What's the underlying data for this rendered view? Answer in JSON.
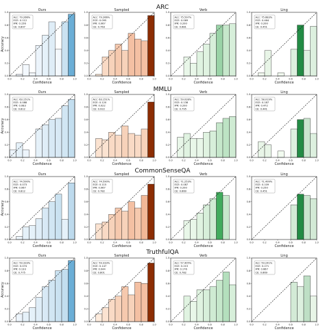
{
  "figure": {
    "datasets": [
      "ARC",
      "MMLU",
      "CommonSenseQA",
      "TruthfulQA"
    ],
    "methods": [
      "Ours",
      "Sampled",
      "Verb",
      "Ling"
    ],
    "xlabel": "Confidence",
    "ylabel": "Accuracy",
    "method_palettes": {
      "Ours": {
        "light": "#f3f8fd",
        "dark": "#6baed6",
        "peak": "#6baed6"
      },
      "Sampled": {
        "light": "#fff4e8",
        "dark": "#d94801",
        "peak": "#8c2d04"
      },
      "Verb": {
        "light": "#f2fbf0",
        "dark": "#41ab5d",
        "peak": "#41ab5d"
      },
      "Ling": {
        "light": "#f2fbf0",
        "dark": "#238b45",
        "peak": "#238b45"
      }
    }
  },
  "chart_data": [
    {
      "type": "bar",
      "dataset": "ARC",
      "method": "Ours",
      "ticks": [
        "0.0",
        "0.2",
        "0.4",
        "0.6",
        "0.8",
        "1.0"
      ],
      "stats": [
        "Acc: 79.266%",
        "ECE: 0.112",
        "IPR: 0.156",
        "CE: 0.897"
      ],
      "values": [
        0.0,
        0.03,
        0.18,
        0.05,
        0.48,
        0.64,
        0.85,
        0.42,
        0.85,
        0.97
      ],
      "shade": [
        0,
        0,
        0,
        0,
        0.05,
        0.1,
        0.15,
        0,
        0.3,
        1
      ]
    },
    {
      "type": "bar",
      "dataset": "ARC",
      "method": "Sampled",
      "ticks": [
        "0.0",
        "0.2",
        "0.4",
        "0.6",
        "0.8",
        "1.0"
      ],
      "stats": [
        "Acc: 79.266%",
        "ECE: 0.095",
        "IPR: 0.067",
        "CE: 0.763"
      ],
      "values": [
        0.0,
        0.03,
        0.3,
        0.4,
        0.5,
        0.4,
        0.67,
        0.58,
        0.55,
        0.95
      ],
      "shade": [
        0.05,
        0.05,
        0.15,
        0.2,
        0.25,
        0.2,
        0.3,
        0.3,
        0.3,
        1
      ]
    },
    {
      "type": "bar",
      "dataset": "ARC",
      "method": "Verb",
      "ticks": [
        "0.0",
        "0.2",
        "0.4",
        "0.6",
        "0.8",
        "1.0"
      ],
      "stats": [
        "Acc: 75.597%",
        "ECE: 0.069",
        "IPR: 0.200",
        "CE: 0.681"
      ],
      "values": [
        0.0,
        0.0,
        0.3,
        0.2,
        0.38,
        0.5,
        0.67,
        0.8,
        0.8,
        0.82
      ],
      "shade": [
        0,
        0,
        0.05,
        0.05,
        0.1,
        0.1,
        0.15,
        0.5,
        0.25,
        0.15
      ]
    },
    {
      "type": "bar",
      "dataset": "ARC",
      "method": "Ling",
      "ticks": [
        "0.0",
        "0.2",
        "0.4",
        "0.6",
        "0.8",
        "1.0"
      ],
      "stats": [
        "Acc: 75.683%",
        "ECE: 0.464",
        "IPR: 0.200",
        "CE: 0.451"
      ],
      "values": [
        0.0,
        0.05,
        0.4,
        0.0,
        0.05,
        0.0,
        0.42,
        0.8,
        0.4,
        0.78
      ],
      "shade": [
        0,
        0,
        0.05,
        0,
        0,
        0,
        0.1,
        1,
        0.1,
        0.1
      ]
    },
    {
      "type": "bar",
      "dataset": "MMLU",
      "method": "Ours",
      "ticks": [
        "0.0",
        "0.2",
        "0.4",
        "0.6",
        "0.8",
        "1.0"
      ],
      "stats": [
        "Acc: 63.151%",
        "ECE: 0.088",
        "IPR: 0.083",
        "CE: 0.812"
      ],
      "values": [
        0.12,
        0.23,
        0.12,
        0.0,
        0.45,
        0.52,
        0.6,
        0.62,
        0.82,
        0.92
      ],
      "shade": [
        0.05,
        0.1,
        0.05,
        0,
        0.1,
        0.15,
        0.2,
        0.2,
        0.25,
        0.35
      ]
    },
    {
      "type": "bar",
      "dataset": "MMLU",
      "method": "Sampled",
      "ticks": [
        "0.0",
        "0.2",
        "0.4",
        "0.6",
        "0.8",
        "1.0"
      ],
      "stats": [
        "Acc: 63.151%",
        "ECE: 0.120",
        "IPR: 0.022",
        "CE: 0.922"
      ],
      "values": [
        0.0,
        0.3,
        0.28,
        0.4,
        0.35,
        0.5,
        0.38,
        0.35,
        0.45,
        0.88
      ],
      "shade": [
        0,
        0.1,
        0.1,
        0.15,
        0.15,
        0.2,
        0.15,
        0.15,
        0.2,
        1
      ]
    },
    {
      "type": "bar",
      "dataset": "MMLU",
      "method": "Verb",
      "ticks": [
        "0.0",
        "0.2",
        "0.4",
        "0.6",
        "0.8",
        "1.0"
      ],
      "stats": [
        "Acc: 59.028%",
        "ECE: 0.138",
        "IPR: 0.200",
        "CE: 0.795"
      ],
      "values": [
        0.0,
        0.32,
        0.38,
        0.3,
        0.3,
        0.4,
        0.42,
        0.55,
        0.62,
        0.65
      ],
      "shade": [
        0,
        0.05,
        0.1,
        0.05,
        0.05,
        0.1,
        0.15,
        0.25,
        0.3,
        0.2
      ]
    },
    {
      "type": "bar",
      "dataset": "MMLU",
      "method": "Ling",
      "ticks": [
        "0.0",
        "0.2",
        "0.4",
        "0.6",
        "0.8",
        "1.0"
      ],
      "stats": [
        "Acc: 58.019%",
        "ECE: 0.187",
        "IPR: 0.472",
        "CE: 0.441"
      ],
      "values": [
        0.0,
        0.25,
        0.2,
        0.0,
        0.1,
        0.0,
        0.45,
        0.6,
        0.62,
        0.38
      ],
      "shade": [
        0,
        0.05,
        0.05,
        0,
        0,
        0,
        0.1,
        1,
        0.2,
        0.1
      ]
    },
    {
      "type": "bar",
      "dataset": "CommonSenseQA",
      "method": "Ours",
      "ticks": [
        "0.0",
        "0.2",
        "0.4",
        "0.6",
        "0.8",
        "1.0"
      ],
      "stats": [
        "Acc: 74.590%",
        "ECE: 0.073",
        "IPR: 0.067",
        "CE: 0.812"
      ],
      "values": [
        0.0,
        0.05,
        0.2,
        0.22,
        0.33,
        0.5,
        0.6,
        0.72,
        0.32,
        0.9
      ],
      "shade": [
        0,
        0.05,
        0.1,
        0.1,
        0.15,
        0.2,
        0.25,
        0.3,
        0.1,
        0.4
      ]
    },
    {
      "type": "bar",
      "dataset": "CommonSenseQA",
      "method": "Sampled",
      "ticks": [
        "0.0",
        "0.2",
        "0.4",
        "0.6",
        "0.8",
        "1.0"
      ],
      "stats": [
        "Acc: 74.590%",
        "ECE: 0.115",
        "IPR: 0.067",
        "CE: 0.782"
      ],
      "values": [
        0.0,
        0.25,
        0.28,
        0.4,
        0.5,
        0.45,
        0.6,
        0.5,
        0.7,
        0.88
      ],
      "shade": [
        0,
        0.1,
        0.15,
        0.2,
        0.25,
        0.2,
        0.3,
        0.25,
        0.35,
        1
      ]
    },
    {
      "type": "bar",
      "dataset": "CommonSenseQA",
      "method": "Verb",
      "ticks": [
        "0.0",
        "0.2",
        "0.4",
        "0.6",
        "0.8",
        "1.0"
      ],
      "stats": [
        "Acc: 71.253%",
        "ECE: 0.087",
        "IPR: 0.200",
        "CE: 0.660"
      ],
      "values": [
        0.0,
        0.0,
        0.3,
        0.32,
        0.42,
        0.55,
        0.65,
        0.75,
        0.7,
        0.0
      ],
      "shade": [
        0,
        0,
        0.05,
        0.05,
        0.1,
        0.15,
        0.2,
        1,
        0.25,
        0
      ]
    },
    {
      "type": "bar",
      "dataset": "CommonSenseQA",
      "method": "Ling",
      "ticks": [
        "0.0",
        "0.2",
        "0.4",
        "0.6",
        "0.8",
        "1.0"
      ],
      "stats": [
        "Acc: 71.499%",
        "ECE: 0.109",
        "IPR: 0.250",
        "CE: 0.451"
      ],
      "values": [
        0.0,
        0.0,
        0.0,
        0.0,
        0.0,
        0.0,
        0.55,
        0.72,
        0.7,
        0.65
      ],
      "shade": [
        0,
        0,
        0,
        0,
        0,
        0,
        0.15,
        1,
        0.2,
        0.15
      ]
    },
    {
      "type": "bar",
      "dataset": "TruthfulQA",
      "method": "Ours",
      "ticks": [
        "0.0",
        "0.2",
        "0.4",
        "0.6",
        "0.8",
        "1.0"
      ],
      "stats": [
        "Acc: 59.333%",
        "ECE: 0.074",
        "IPR: 0.133",
        "CE: 0.775"
      ],
      "values": [
        0.0,
        0.12,
        0.15,
        0.22,
        0.38,
        0.55,
        0.65,
        0.8,
        0.82,
        0.96
      ],
      "shade": [
        0,
        0.05,
        0.1,
        0.1,
        0.15,
        0.2,
        0.25,
        0.3,
        0.35,
        1
      ]
    },
    {
      "type": "bar",
      "dataset": "TruthfulQA",
      "method": "Sampled",
      "ticks": [
        "0.0",
        "0.2",
        "0.4",
        "0.6",
        "0.8",
        "1.0"
      ],
      "stats": [
        "Acc: 59.333%",
        "ECE: 0.147",
        "IPR: 0.044",
        "CE: 0.801"
      ],
      "values": [
        0.0,
        0.12,
        0.22,
        0.35,
        0.4,
        0.55,
        0.42,
        0.62,
        0.6,
        0.92
      ],
      "shade": [
        0,
        0.05,
        0.1,
        0.15,
        0.2,
        0.25,
        0.2,
        0.3,
        0.3,
        1
      ]
    },
    {
      "type": "bar",
      "dataset": "TruthfulQA",
      "method": "Verb",
      "ticks": [
        "0.0",
        "0.2",
        "0.4",
        "0.6",
        "0.8",
        "1.0"
      ],
      "stats": [
        "Acc: 57.405%",
        "ECE: 0.215",
        "IPR: 0.176",
        "CE: 0.782"
      ],
      "values": [
        0.0,
        0.0,
        0.4,
        0.32,
        0.5,
        0.5,
        0.55,
        0.65,
        0.78,
        0.58
      ],
      "shade": [
        0,
        0,
        0.1,
        0.05,
        0.1,
        0.15,
        0.2,
        0.25,
        0.35,
        0.15
      ]
    },
    {
      "type": "bar",
      "dataset": "TruthfulQA",
      "method": "Ling",
      "ticks": [
        "0.0",
        "0.2",
        "0.4",
        "0.6",
        "0.8",
        "1.0"
      ],
      "stats": [
        "Acc: 59.241%",
        "ECE: 0.271",
        "IPR: 0.667",
        "CE: 0.669"
      ],
      "values": [
        0.0,
        0.0,
        0.0,
        0.0,
        0.0,
        0.0,
        0.62,
        0.55,
        0.72,
        0.4
      ],
      "shade": [
        0,
        0,
        0,
        0,
        0,
        0,
        0.15,
        0.1,
        0.25,
        0.05
      ]
    }
  ]
}
